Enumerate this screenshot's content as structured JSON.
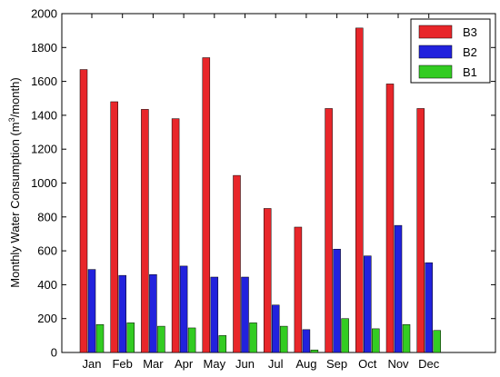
{
  "chart_data": {
    "type": "bar",
    "categories": [
      "Jan",
      "Feb",
      "Mar",
      "Apr",
      "May",
      "Jun",
      "Jul",
      "Aug",
      "Sep",
      "Oct",
      "Nov",
      "Dec"
    ],
    "series": [
      {
        "name": "B3",
        "color": "#e8262a",
        "values": [
          1670,
          1480,
          1435,
          1380,
          1740,
          1045,
          850,
          740,
          1440,
          1915,
          1585,
          1440
        ]
      },
      {
        "name": "B2",
        "color": "#2222dd",
        "values": [
          490,
          455,
          460,
          510,
          445,
          445,
          280,
          135,
          610,
          570,
          750,
          530
        ]
      },
      {
        "name": "B1",
        "color": "#33cc22",
        "values": [
          165,
          175,
          155,
          145,
          100,
          175,
          155,
          15,
          200,
          140,
          165,
          130
        ]
      }
    ],
    "ylim": [
      0,
      2000
    ],
    "yticks": [
      0,
      200,
      400,
      600,
      800,
      1000,
      1200,
      1400,
      1600,
      1800,
      2000
    ],
    "ylabel": {
      "prefix": "Monthly Water Consumption (m",
      "sup": "3",
      "suffix": "/month)"
    },
    "xlabel": "",
    "title": "",
    "legend_position": "top-right",
    "grid": false
  }
}
